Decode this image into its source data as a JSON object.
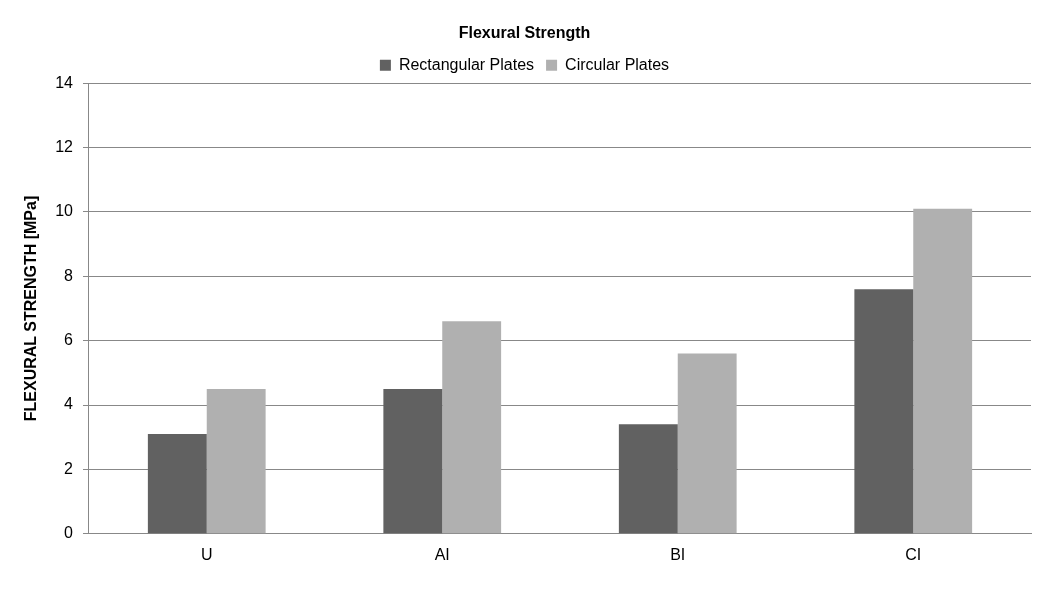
{
  "chart_data": {
    "type": "bar",
    "title": "Flexural Strength",
    "ylabel": "FLEXURAL STRENGTH [MPa]",
    "categories": [
      "U",
      "AI",
      "BI",
      "CI"
    ],
    "series": [
      {
        "name": "Rectangular Plates",
        "color": "#616161",
        "values": [
          3.1,
          4.5,
          3.4,
          7.6
        ]
      },
      {
        "name": "Circular Plates",
        "color": "#b0b0b0",
        "values": [
          4.5,
          6.6,
          5.6,
          10.1
        ]
      }
    ],
    "ylim": [
      0,
      14
    ],
    "yticks": [
      0,
      2,
      4,
      6,
      8,
      10,
      12,
      14
    ],
    "grid": "y",
    "legend": "top"
  }
}
